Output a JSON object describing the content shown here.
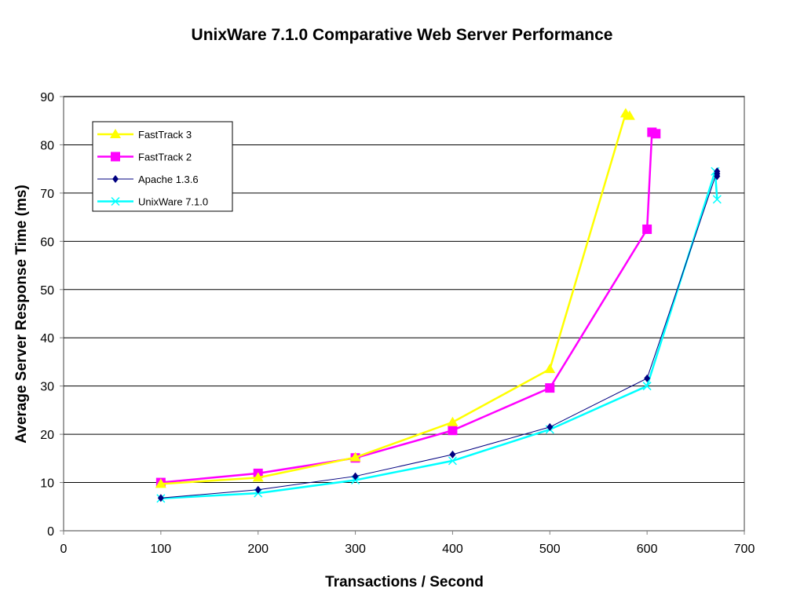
{
  "chart_data": {
    "type": "line",
    "title": "UnixWare 7.1.0 Comparative Web Server Performance",
    "xlabel": "Transactions / Second",
    "ylabel": "Average Server Response Time (ms)",
    "xlim": [
      0,
      700
    ],
    "ylim": [
      0,
      90
    ],
    "xticks": [
      "0",
      "100",
      "200",
      "300",
      "400",
      "500",
      "600",
      "700"
    ],
    "yticks": [
      "0",
      "10",
      "20",
      "30",
      "40",
      "50",
      "60",
      "70",
      "80",
      "90"
    ],
    "grid": "horizontal",
    "legend": "top-left",
    "series": [
      {
        "name": "FastTrack 3",
        "color": "#FFFF00",
        "marker": "triangle",
        "points": [
          [
            100,
            9.7
          ],
          [
            200,
            11
          ],
          [
            300,
            15.2
          ],
          [
            400,
            22.5
          ],
          [
            500,
            33.5
          ],
          [
            578,
            86.5
          ],
          [
            582,
            86
          ]
        ]
      },
      {
        "name": "FastTrack 2",
        "color": "#FF00FF",
        "marker": "square",
        "points": [
          [
            100,
            10
          ],
          [
            200,
            11.9
          ],
          [
            300,
            15.1
          ],
          [
            400,
            20.8
          ],
          [
            500,
            29.6
          ],
          [
            600,
            62.5
          ],
          [
            605,
            82.6
          ],
          [
            609,
            82.3
          ]
        ]
      },
      {
        "name": "Apache 1.3.6",
        "color": "#000080",
        "marker": "diamond",
        "points": [
          [
            100,
            6.8
          ],
          [
            200,
            8.5
          ],
          [
            300,
            11.3
          ],
          [
            400,
            15.8
          ],
          [
            500,
            21.5
          ],
          [
            600,
            31.6
          ],
          [
            672,
            74.5
          ],
          [
            672,
            74
          ],
          [
            672,
            73.5
          ]
        ]
      },
      {
        "name": "UnixWare 7.1.0",
        "color": "#00FFFF",
        "marker": "x",
        "points": [
          [
            100,
            6.7
          ],
          [
            200,
            7.8
          ],
          [
            300,
            10.5
          ],
          [
            400,
            14.5
          ],
          [
            500,
            21
          ],
          [
            600,
            30
          ],
          [
            670,
            74.5
          ],
          [
            672,
            68.7
          ]
        ]
      }
    ]
  }
}
